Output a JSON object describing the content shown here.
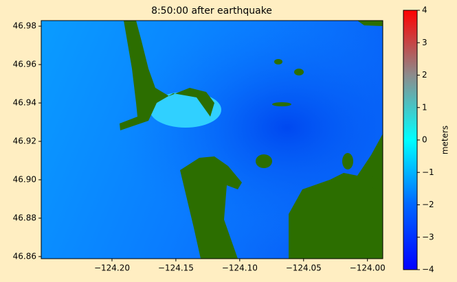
{
  "chart_data": {
    "type": "map",
    "title": "8:50:00 after earthquake",
    "xlim": [
      -124.2554,
      -123.988
    ],
    "ylim": [
      46.8589,
      46.9829
    ],
    "xticks": [
      {
        "value": -124.2,
        "label": "−124.20"
      },
      {
        "value": -124.15,
        "label": "−124.15"
      },
      {
        "value": -124.1,
        "label": "−124.10"
      },
      {
        "value": -124.05,
        "label": "−124.05"
      },
      {
        "value": -124.0,
        "label": "−124.00"
      }
    ],
    "yticks": [
      {
        "value": 46.86,
        "label": "46.86"
      },
      {
        "value": 46.88,
        "label": "46.88"
      },
      {
        "value": 46.9,
        "label": "46.90"
      },
      {
        "value": 46.92,
        "label": "46.92"
      },
      {
        "value": 46.94,
        "label": "46.94"
      },
      {
        "value": 46.96,
        "label": "46.96"
      },
      {
        "value": 46.98,
        "label": "46.98"
      }
    ],
    "colorbar": {
      "label": "meters",
      "clim": [
        -4,
        4
      ],
      "ticks": [
        {
          "value": -4,
          "label": "−4"
        },
        {
          "value": -3,
          "label": "−3"
        },
        {
          "value": -2,
          "label": "−2"
        },
        {
          "value": -1,
          "label": "−1"
        },
        0,
        1,
        2,
        3,
        4
      ],
      "colors": [
        "#0000ff",
        "#0066ff",
        "#00ffff",
        "#8c8c8c",
        "#ff0000"
      ]
    },
    "land_color": "#2c6e00"
  }
}
